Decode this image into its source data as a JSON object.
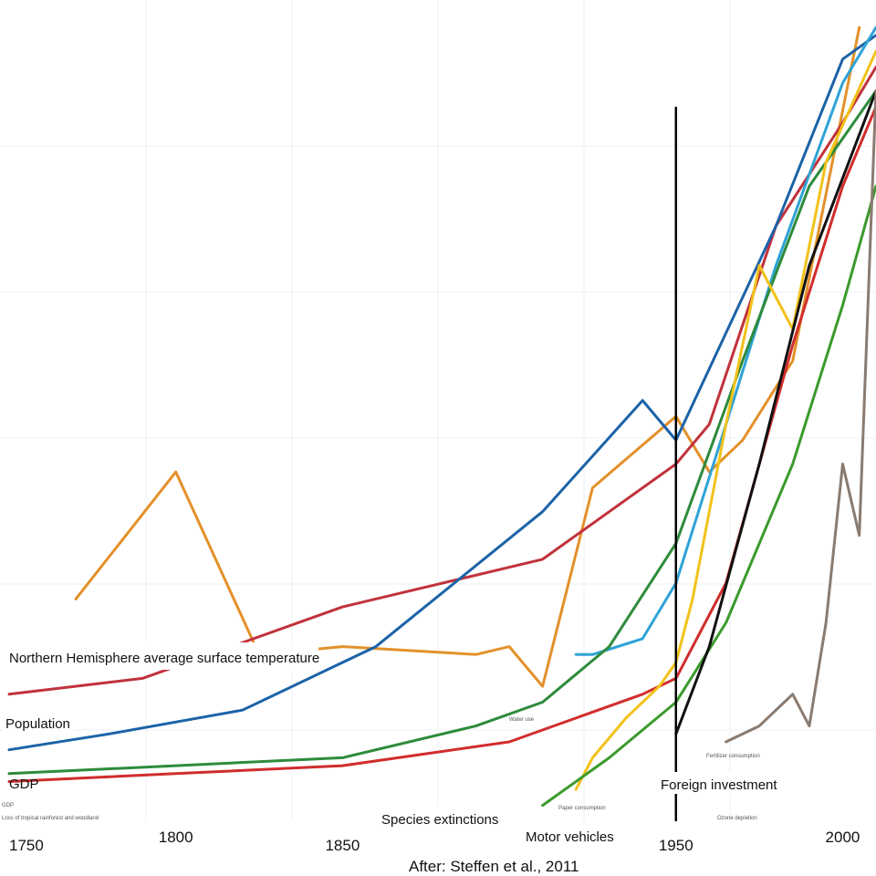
{
  "chart_data": {
    "type": "line",
    "title": "",
    "caption": "After: Steffen et al., 2011",
    "xlabel": "",
    "ylabel": "",
    "x_ticks": [
      {
        "value": 1750,
        "label": "1750"
      },
      {
        "value": 1800,
        "label": "1800"
      },
      {
        "value": 1850,
        "label": "1850"
      },
      {
        "value": 1950,
        "label": "1950"
      },
      {
        "value": 2000,
        "label": "2000"
      }
    ],
    "xlim": [
      1750,
      2010
    ],
    "ylim": [
      0,
      100
    ],
    "marker_line": {
      "x": 1950,
      "y_from": 0,
      "y_to": 90
    },
    "series": [
      {
        "name": "Northern Hemisphere average surface temperature",
        "color": "#e3912a",
        "points": [
          [
            1770,
            28
          ],
          [
            1800,
            44
          ],
          [
            1825,
            21
          ],
          [
            1850,
            22
          ],
          [
            1890,
            21
          ],
          [
            1900,
            22
          ],
          [
            1910,
            17
          ],
          [
            1925,
            42
          ],
          [
            1950,
            51
          ],
          [
            1960,
            44
          ],
          [
            1970,
            48
          ],
          [
            1985,
            58
          ],
          [
            2005,
            100
          ]
        ]
      },
      {
        "name": "Population",
        "color": "#c1323b",
        "points": [
          [
            1750,
            16
          ],
          [
            1790,
            18
          ],
          [
            1850,
            27
          ],
          [
            1910,
            33
          ],
          [
            1950,
            45
          ],
          [
            1960,
            50
          ],
          [
            1980,
            75
          ],
          [
            2000,
            88
          ],
          [
            2010,
            95
          ]
        ]
      },
      {
        "name": "GDP",
        "color": "#1c63a8",
        "points": [
          [
            1750,
            9
          ],
          [
            1780,
            11
          ],
          [
            1820,
            14
          ],
          [
            1860,
            22
          ],
          [
            1910,
            39
          ],
          [
            1940,
            53
          ],
          [
            1950,
            48
          ],
          [
            1960,
            57
          ],
          [
            1980,
            75
          ],
          [
            2000,
            96
          ],
          [
            2010,
            99
          ]
        ]
      },
      {
        "name": "Water use",
        "color": "#2ea3d6",
        "points": [
          [
            1920,
            21
          ],
          [
            1925,
            21
          ],
          [
            1940,
            23
          ],
          [
            1950,
            30
          ],
          [
            1965,
            50
          ],
          [
            1980,
            70
          ],
          [
            2000,
            93
          ],
          [
            2010,
            100
          ]
        ]
      },
      {
        "name": "Loss of tropical rainforest and woodland",
        "color": "#2e8b3b",
        "points": [
          [
            1750,
            6
          ],
          [
            1800,
            7
          ],
          [
            1850,
            8
          ],
          [
            1890,
            12
          ],
          [
            1910,
            15
          ],
          [
            1930,
            22
          ],
          [
            1950,
            35
          ],
          [
            1970,
            58
          ],
          [
            1990,
            80
          ],
          [
            2010,
            92
          ]
        ]
      },
      {
        "name": "Paper consumption",
        "color": "#d12d2d",
        "points": [
          [
            1750,
            5
          ],
          [
            1800,
            6
          ],
          [
            1850,
            7
          ],
          [
            1900,
            10
          ],
          [
            1940,
            16
          ],
          [
            1950,
            18
          ],
          [
            1965,
            30
          ],
          [
            1985,
            60
          ],
          [
            2000,
            80
          ],
          [
            2010,
            90
          ]
        ]
      },
      {
        "name": "Fertilizer consumption",
        "color": "#f2c21a",
        "points": [
          [
            1920,
            4
          ],
          [
            1925,
            8
          ],
          [
            1935,
            13
          ],
          [
            1945,
            17
          ],
          [
            1950,
            20
          ],
          [
            1955,
            28
          ],
          [
            1965,
            50
          ],
          [
            1975,
            70
          ],
          [
            1985,
            62
          ],
          [
            1995,
            83
          ],
          [
            2010,
            97
          ]
        ]
      },
      {
        "name": "Species extinctions",
        "color": "#3b9a2c",
        "points": [
          [
            1910,
            2
          ],
          [
            1930,
            8
          ],
          [
            1950,
            15
          ],
          [
            1965,
            25
          ],
          [
            1985,
            45
          ],
          [
            2000,
            65
          ],
          [
            2010,
            80
          ]
        ]
      },
      {
        "name": "Foreign investment",
        "color": "#111111",
        "points": [
          [
            1950,
            11
          ],
          [
            1960,
            22
          ],
          [
            1975,
            45
          ],
          [
            1990,
            70
          ],
          [
            2010,
            92
          ]
        ]
      },
      {
        "name": "Motor vehicles",
        "color": "#8a7b70",
        "points": [
          [
            1965,
            10
          ],
          [
            1975,
            12
          ],
          [
            1985,
            16
          ],
          [
            1990,
            12
          ],
          [
            1995,
            25
          ],
          [
            2000,
            45
          ],
          [
            2005,
            36
          ],
          [
            2010,
            92
          ]
        ]
      }
    ],
    "annotations": [
      {
        "text": "Northern Hemisphere average surface temperature",
        "series": "Northern Hemisphere average surface temperature"
      },
      {
        "text": "Population",
        "series": "Population"
      },
      {
        "text": "GDP",
        "series": "GDP"
      },
      {
        "text": "Foreign investment",
        "series": "Foreign investment"
      },
      {
        "text": "Species extinctions",
        "series": "Species extinctions"
      },
      {
        "text": "Motor vehicles",
        "series": "Motor vehicles"
      }
    ]
  },
  "labels": {
    "temperature": "Northern Hemisphere average surface temperature",
    "population": "Population",
    "gdp": "GDP",
    "foreign_investment": "Foreign investment",
    "species_extinctions": "Species extinctions",
    "motor_vehicles": "Motor vehicles",
    "caption": "After: Steffen et al., 2011"
  },
  "mini_labels": {
    "water_use": "Water use",
    "paper_consumption": "Paper consumption",
    "fertilizer": "Fertilizer consumption",
    "ozone": "Ozone depletion",
    "rainforest": "Loss of tropical rainforest and woodland",
    "gdp_small": "GDP"
  }
}
